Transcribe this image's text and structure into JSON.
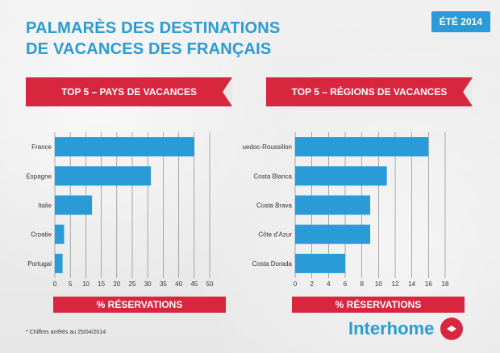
{
  "title_line1": "PALMARÈS DES DESTINATIONS",
  "title_line2": "DE VACANCES DES FRANÇAIS",
  "season_badge": "ÉTÉ 2014",
  "footnote": "* Chiffres arrêtés au 25/04/2014",
  "brand": "Interhome",
  "colors": {
    "accent_blue": "#2a9bd7",
    "accent_red": "#d7263d"
  },
  "chart_data": [
    {
      "type": "bar",
      "orientation": "horizontal",
      "title": "TOP 5 – PAYS DE VACANCES",
      "xlabel": "% RÉSERVATIONS",
      "categories": [
        "France",
        "Espagne",
        "Italie",
        "Croatie",
        "Portugal"
      ],
      "values": [
        45,
        31,
        12,
        3,
        2.5
      ],
      "xlim": [
        0,
        50
      ],
      "xticks": [
        0,
        5,
        10,
        15,
        20,
        25,
        30,
        35,
        40,
        45,
        50
      ],
      "grid": true,
      "bar_color": "#2a9bd7"
    },
    {
      "type": "bar",
      "orientation": "horizontal",
      "title": "TOP 5 – RÉGIONS DE VACANCES",
      "xlabel": "% RÉSERVATIONS",
      "categories": [
        "Languedoc-Roussillon",
        "Costa Blanca",
        "Costa Brava",
        "Côte d’Azur",
        "Costa Dorada"
      ],
      "values": [
        16,
        11,
        9,
        9,
        6
      ],
      "xlim": [
        0,
        18
      ],
      "xticks": [
        0,
        2,
        4,
        6,
        8,
        10,
        12,
        14,
        16,
        18
      ],
      "grid": true,
      "bar_color": "#2a9bd7"
    }
  ]
}
